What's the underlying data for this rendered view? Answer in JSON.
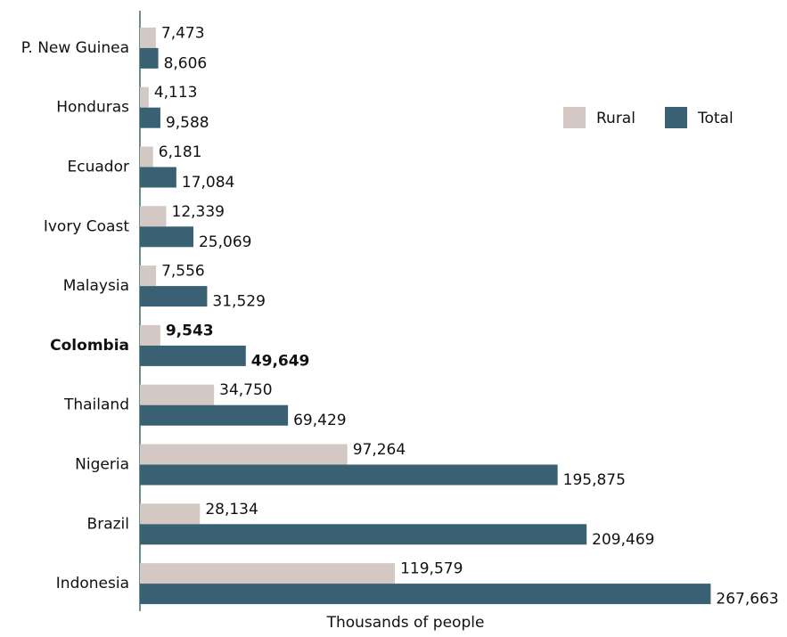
{
  "chart_data": {
    "type": "hbar",
    "x_label": "Thousands of people",
    "categories": [
      "P. New Guinea",
      "Honduras",
      "Ecuador",
      "Ivory Coast",
      "Malaysia",
      "Colombia",
      "Thailand",
      "Nigeria",
      "Brazil",
      "Indonesia"
    ],
    "series": [
      {
        "name": "Rural",
        "color": "#d3c8c4",
        "values": [
          7473,
          4113,
          6181,
          12339,
          7556,
          9543,
          34750,
          97264,
          28134,
          119579
        ],
        "value_labels": [
          "7,473",
          "4,113",
          "6,181",
          "12,339",
          "7,556",
          "9,543",
          "34,750",
          "97,264",
          "28,134",
          "119,579"
        ]
      },
      {
        "name": "Total",
        "color": "#3a6073",
        "values": [
          8606,
          9588,
          17084,
          25069,
          31529,
          49649,
          69429,
          195875,
          209469,
          267663
        ],
        "value_labels": [
          "8,606",
          "9,588",
          "17,084",
          "25,069",
          "31,529",
          "49,649",
          "69,429",
          "195,875",
          "209,469",
          "267,663"
        ]
      }
    ],
    "xlim": [
      0,
      270000
    ],
    "highlight_index": 5,
    "legend": "upper-right"
  }
}
